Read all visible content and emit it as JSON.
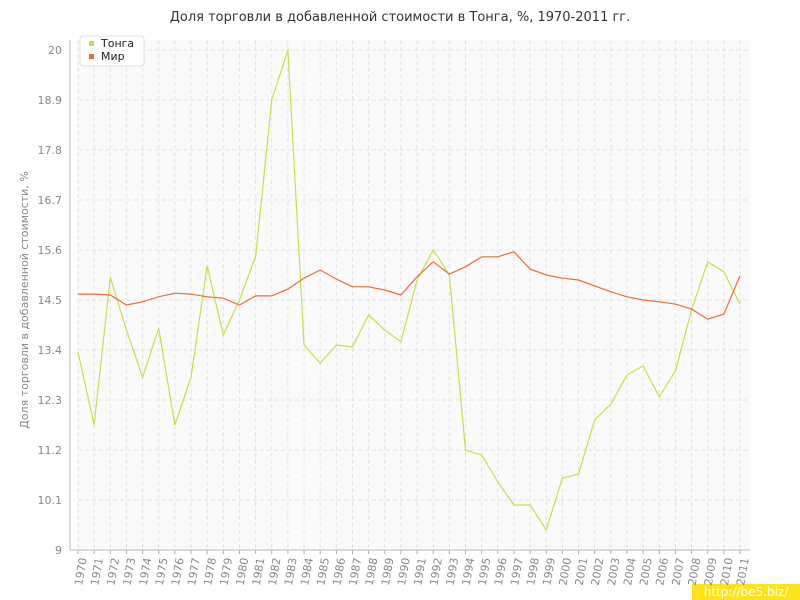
{
  "chart_data": {
    "type": "line",
    "title": "Доля торговли в добавленной стоимости в Тонга, %, 1970-2011 гг.",
    "y_label": "Доля торговли в добавленной стоимости, %",
    "watermark": "http://be5.biz/",
    "x": [
      1970,
      1971,
      1972,
      1973,
      1974,
      1975,
      1976,
      1977,
      1978,
      1979,
      1980,
      1981,
      1982,
      1983,
      1984,
      1985,
      1986,
      1987,
      1988,
      1989,
      1990,
      1991,
      1992,
      1993,
      1994,
      1995,
      1996,
      1997,
      1998,
      1999,
      2000,
      2001,
      2002,
      2003,
      2004,
      2005,
      2006,
      2007,
      2008,
      2009,
      2010,
      2011
    ],
    "xlim": [
      1970,
      2011
    ],
    "xticks": [
      1970,
      1971,
      1972,
      1973,
      1974,
      1975,
      1976,
      1977,
      1978,
      1979,
      1980,
      1981,
      1982,
      1983,
      1984,
      1985,
      1986,
      1987,
      1988,
      1989,
      1990,
      1991,
      1992,
      1993,
      1994,
      1995,
      1996,
      1997,
      1998,
      1999,
      2000,
      2001,
      2002,
      2003,
      2004,
      2005,
      2006,
      2007,
      2008,
      2009,
      2010,
      2011
    ],
    "ylim": [
      9,
      20
    ],
    "yticks": [
      9,
      10.1,
      11.2,
      12.3,
      13.4,
      14.5,
      15.6,
      16.7,
      17.8,
      18.9,
      20
    ],
    "grid": true,
    "legend": "top-left",
    "series": [
      {
        "name": "Тонга",
        "color": "#c5e04a",
        "values": [
          13.36,
          11.75,
          15.0,
          13.84,
          12.8,
          13.88,
          11.75,
          12.8,
          15.25,
          13.73,
          14.5,
          15.45,
          18.9,
          20,
          13.51,
          13.11,
          13.51,
          13.47,
          14.17,
          13.84,
          13.58,
          14.94,
          15.6,
          15.05,
          11.2,
          11.09,
          10.5,
          9.99,
          9.99,
          9.44,
          10.58,
          10.67,
          11.86,
          12.21,
          12.85,
          13.05,
          12.37,
          12.94,
          14.28,
          15.34,
          15.12,
          14.41
        ]
      },
      {
        "name": "Мир",
        "color": "#e0703c",
        "values": [
          14.63,
          14.63,
          14.61,
          14.39,
          14.46,
          14.57,
          14.65,
          14.63,
          14.57,
          14.54,
          14.39,
          14.59,
          14.59,
          14.74,
          14.98,
          15.16,
          14.96,
          14.79,
          14.79,
          14.72,
          14.61,
          15.01,
          15.34,
          15.07,
          15.23,
          15.45,
          15.45,
          15.56,
          15.18,
          15.05,
          14.98,
          14.94,
          14.81,
          14.68,
          14.57,
          14.5,
          14.46,
          14.41,
          14.3,
          14.08,
          14.19,
          15.03
        ]
      }
    ]
  }
}
